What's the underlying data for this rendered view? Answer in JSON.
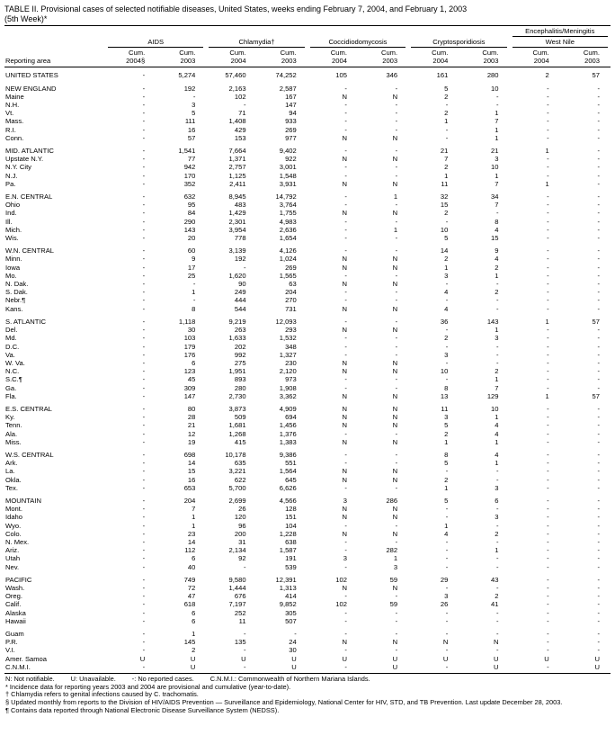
{
  "title": {
    "line1": "TABLE II. Provisional cases of selected notifiable diseases, United States, weeks ending February 7, 2004, and February 1, 2003",
    "line2": "(5th Week)*"
  },
  "header": {
    "reporting_area_label": "Reporting area",
    "super_group": "Encephalitis/Meningitis",
    "groups": [
      "AIDS",
      "Chlamydia†",
      "Coccidiodomycosis",
      "Cryptosporidiosis",
      "West Nile"
    ],
    "cum_label": "Cum.",
    "years": [
      "2004§",
      "2003",
      "2004",
      "2003",
      "2004",
      "2003",
      "2004",
      "2003",
      "2004",
      "2003"
    ]
  },
  "rows": [
    {
      "area": "UNITED STATES",
      "section": true,
      "gap": false,
      "values": [
        "-",
        "5,274",
        "57,460",
        "74,252",
        "105",
        "346",
        "161",
        "280",
        "2",
        "57"
      ]
    },
    {
      "area": "NEW ENGLAND",
      "section": true,
      "gap": true,
      "values": [
        "-",
        "192",
        "2,163",
        "2,587",
        "-",
        "-",
        "5",
        "10",
        "-",
        "-"
      ]
    },
    {
      "area": "Maine",
      "section": false,
      "gap": false,
      "values": [
        "-",
        "-",
        "102",
        "167",
        "N",
        "N",
        "2",
        "-",
        "-",
        "-"
      ]
    },
    {
      "area": "N.H.",
      "section": false,
      "gap": false,
      "values": [
        "-",
        "3",
        "-",
        "147",
        "-",
        "-",
        "-",
        "-",
        "-",
        "-"
      ]
    },
    {
      "area": "Vt.",
      "section": false,
      "gap": false,
      "values": [
        "-",
        "5",
        "71",
        "94",
        "-",
        "-",
        "2",
        "1",
        "-",
        "-"
      ]
    },
    {
      "area": "Mass.",
      "section": false,
      "gap": false,
      "values": [
        "-",
        "111",
        "1,408",
        "933",
        "-",
        "-",
        "1",
        "7",
        "-",
        "-"
      ]
    },
    {
      "area": "R.I.",
      "section": false,
      "gap": false,
      "values": [
        "-",
        "16",
        "429",
        "269",
        "-",
        "-",
        "-",
        "1",
        "-",
        "-"
      ]
    },
    {
      "area": "Conn.",
      "section": false,
      "gap": false,
      "values": [
        "-",
        "57",
        "153",
        "977",
        "N",
        "N",
        "-",
        "1",
        "-",
        "-"
      ]
    },
    {
      "area": "MID. ATLANTIC",
      "section": true,
      "gap": true,
      "values": [
        "-",
        "1,541",
        "7,664",
        "9,402",
        "-",
        "-",
        "21",
        "21",
        "1",
        "-"
      ]
    },
    {
      "area": "Upstate N.Y.",
      "section": false,
      "gap": false,
      "values": [
        "-",
        "77",
        "1,371",
        "922",
        "N",
        "N",
        "7",
        "3",
        "-",
        "-"
      ]
    },
    {
      "area": "N.Y. City",
      "section": false,
      "gap": false,
      "values": [
        "-",
        "942",
        "2,757",
        "3,001",
        "-",
        "-",
        "2",
        "10",
        "-",
        "-"
      ]
    },
    {
      "area": "N.J.",
      "section": false,
      "gap": false,
      "values": [
        "-",
        "170",
        "1,125",
        "1,548",
        "-",
        "-",
        "1",
        "1",
        "-",
        "-"
      ]
    },
    {
      "area": "Pa.",
      "section": false,
      "gap": false,
      "values": [
        "-",
        "352",
        "2,411",
        "3,931",
        "N",
        "N",
        "11",
        "7",
        "1",
        "-"
      ]
    },
    {
      "area": "E.N. CENTRAL",
      "section": true,
      "gap": true,
      "values": [
        "-",
        "632",
        "8,945",
        "14,792",
        "-",
        "1",
        "32",
        "34",
        "-",
        "-"
      ]
    },
    {
      "area": "Ohio",
      "section": false,
      "gap": false,
      "values": [
        "-",
        "95",
        "483",
        "3,764",
        "-",
        "-",
        "15",
        "7",
        "-",
        "-"
      ]
    },
    {
      "area": "Ind.",
      "section": false,
      "gap": false,
      "values": [
        "-",
        "84",
        "1,429",
        "1,755",
        "N",
        "N",
        "2",
        "-",
        "-",
        "-"
      ]
    },
    {
      "area": "Ill.",
      "section": false,
      "gap": false,
      "values": [
        "-",
        "290",
        "2,301",
        "4,983",
        "-",
        "-",
        "-",
        "8",
        "-",
        "-"
      ]
    },
    {
      "area": "Mich.",
      "section": false,
      "gap": false,
      "values": [
        "-",
        "143",
        "3,954",
        "2,636",
        "-",
        "1",
        "10",
        "4",
        "-",
        "-"
      ]
    },
    {
      "area": "Wis.",
      "section": false,
      "gap": false,
      "values": [
        "-",
        "20",
        "778",
        "1,654",
        "-",
        "-",
        "5",
        "15",
        "-",
        "-"
      ]
    },
    {
      "area": "W.N. CENTRAL",
      "section": true,
      "gap": true,
      "values": [
        "-",
        "60",
        "3,139",
        "4,126",
        "-",
        "-",
        "14",
        "9",
        "-",
        "-"
      ]
    },
    {
      "area": "Minn.",
      "section": false,
      "gap": false,
      "values": [
        "-",
        "9",
        "192",
        "1,024",
        "N",
        "N",
        "2",
        "4",
        "-",
        "-"
      ]
    },
    {
      "area": "Iowa",
      "section": false,
      "gap": false,
      "values": [
        "-",
        "17",
        "-",
        "269",
        "N",
        "N",
        "1",
        "2",
        "-",
        "-"
      ]
    },
    {
      "area": "Mo.",
      "section": false,
      "gap": false,
      "values": [
        "-",
        "25",
        "1,620",
        "1,565",
        "-",
        "-",
        "3",
        "1",
        "-",
        "-"
      ]
    },
    {
      "area": "N. Dak.",
      "section": false,
      "gap": false,
      "values": [
        "-",
        "-",
        "90",
        "63",
        "N",
        "N",
        "-",
        "-",
        "-",
        "-"
      ]
    },
    {
      "area": "S. Dak.",
      "section": false,
      "gap": false,
      "values": [
        "-",
        "1",
        "249",
        "204",
        "-",
        "-",
        "4",
        "2",
        "-",
        "-"
      ]
    },
    {
      "area": "Nebr.¶",
      "section": false,
      "gap": false,
      "values": [
        "-",
        "-",
        "444",
        "270",
        "-",
        "-",
        "-",
        "-",
        "-",
        "-"
      ]
    },
    {
      "area": "Kans.",
      "section": false,
      "gap": false,
      "values": [
        "-",
        "8",
        "544",
        "731",
        "N",
        "N",
        "4",
        "-",
        "-",
        "-"
      ]
    },
    {
      "area": "S. ATLANTIC",
      "section": true,
      "gap": true,
      "values": [
        "-",
        "1,118",
        "9,219",
        "12,093",
        "-",
        "-",
        "36",
        "143",
        "1",
        "57"
      ]
    },
    {
      "area": "Del.",
      "section": false,
      "gap": false,
      "values": [
        "-",
        "30",
        "263",
        "293",
        "N",
        "N",
        "-",
        "1",
        "-",
        "-"
      ]
    },
    {
      "area": "Md.",
      "section": false,
      "gap": false,
      "values": [
        "-",
        "103",
        "1,633",
        "1,532",
        "-",
        "-",
        "2",
        "3",
        "-",
        "-"
      ]
    },
    {
      "area": "D.C.",
      "section": false,
      "gap": false,
      "values": [
        "-",
        "179",
        "202",
        "348",
        "-",
        "-",
        "-",
        "-",
        "-",
        "-"
      ]
    },
    {
      "area": "Va.",
      "section": false,
      "gap": false,
      "values": [
        "-",
        "176",
        "992",
        "1,327",
        "-",
        "-",
        "3",
        "-",
        "-",
        "-"
      ]
    },
    {
      "area": "W. Va.",
      "section": false,
      "gap": false,
      "values": [
        "-",
        "6",
        "275",
        "230",
        "N",
        "N",
        "-",
        "-",
        "-",
        "-"
      ]
    },
    {
      "area": "N.C.",
      "section": false,
      "gap": false,
      "values": [
        "-",
        "123",
        "1,951",
        "2,120",
        "N",
        "N",
        "10",
        "2",
        "-",
        "-"
      ]
    },
    {
      "area": "S.C.¶",
      "section": false,
      "gap": false,
      "values": [
        "-",
        "45",
        "893",
        "973",
        "-",
        "-",
        "-",
        "1",
        "-",
        "-"
      ]
    },
    {
      "area": "Ga.",
      "section": false,
      "gap": false,
      "values": [
        "-",
        "309",
        "280",
        "1,908",
        "-",
        "-",
        "8",
        "7",
        "-",
        "-"
      ]
    },
    {
      "area": "Fla.",
      "section": false,
      "gap": false,
      "values": [
        "-",
        "147",
        "2,730",
        "3,362",
        "N",
        "N",
        "13",
        "129",
        "1",
        "57"
      ]
    },
    {
      "area": "E.S. CENTRAL",
      "section": true,
      "gap": true,
      "values": [
        "-",
        "80",
        "3,873",
        "4,909",
        "N",
        "N",
        "11",
        "10",
        "-",
        "-"
      ]
    },
    {
      "area": "Ky.",
      "section": false,
      "gap": false,
      "values": [
        "-",
        "28",
        "509",
        "694",
        "N",
        "N",
        "3",
        "1",
        "-",
        "-"
      ]
    },
    {
      "area": "Tenn.",
      "section": false,
      "gap": false,
      "values": [
        "-",
        "21",
        "1,681",
        "1,456",
        "N",
        "N",
        "5",
        "4",
        "-",
        "-"
      ]
    },
    {
      "area": "Ala.",
      "section": false,
      "gap": false,
      "values": [
        "-",
        "12",
        "1,268",
        "1,376",
        "-",
        "-",
        "2",
        "4",
        "-",
        "-"
      ]
    },
    {
      "area": "Miss.",
      "section": false,
      "gap": false,
      "values": [
        "-",
        "19",
        "415",
        "1,383",
        "N",
        "N",
        "1",
        "1",
        "-",
        "-"
      ]
    },
    {
      "area": "W.S. CENTRAL",
      "section": true,
      "gap": true,
      "values": [
        "-",
        "698",
        "10,178",
        "9,386",
        "-",
        "-",
        "8",
        "4",
        "-",
        "-"
      ]
    },
    {
      "area": "Ark.",
      "section": false,
      "gap": false,
      "values": [
        "-",
        "14",
        "635",
        "551",
        "-",
        "-",
        "5",
        "1",
        "-",
        "-"
      ]
    },
    {
      "area": "La.",
      "section": false,
      "gap": false,
      "values": [
        "-",
        "15",
        "3,221",
        "1,564",
        "N",
        "N",
        "-",
        "-",
        "-",
        "-"
      ]
    },
    {
      "area": "Okla.",
      "section": false,
      "gap": false,
      "values": [
        "-",
        "16",
        "622",
        "645",
        "N",
        "N",
        "2",
        "-",
        "-",
        "-"
      ]
    },
    {
      "area": "Tex.",
      "section": false,
      "gap": false,
      "values": [
        "-",
        "653",
        "5,700",
        "6,626",
        "-",
        "-",
        "1",
        "3",
        "-",
        "-"
      ]
    },
    {
      "area": "MOUNTAIN",
      "section": true,
      "gap": true,
      "values": [
        "-",
        "204",
        "2,699",
        "4,566",
        "3",
        "286",
        "5",
        "6",
        "-",
        "-"
      ]
    },
    {
      "area": "Mont.",
      "section": false,
      "gap": false,
      "values": [
        "-",
        "7",
        "26",
        "128",
        "N",
        "N",
        "-",
        "-",
        "-",
        "-"
      ]
    },
    {
      "area": "Idaho",
      "section": false,
      "gap": false,
      "values": [
        "-",
        "1",
        "120",
        "151",
        "N",
        "N",
        "-",
        "3",
        "-",
        "-"
      ]
    },
    {
      "area": "Wyo.",
      "section": false,
      "gap": false,
      "values": [
        "-",
        "1",
        "96",
        "104",
        "-",
        "-",
        "1",
        "-",
        "-",
        "-"
      ]
    },
    {
      "area": "Colo.",
      "section": false,
      "gap": false,
      "values": [
        "-",
        "23",
        "200",
        "1,228",
        "N",
        "N",
        "4",
        "2",
        "-",
        "-"
      ]
    },
    {
      "area": "N. Mex.",
      "section": false,
      "gap": false,
      "values": [
        "-",
        "14",
        "31",
        "638",
        "-",
        "-",
        "-",
        "-",
        "-",
        "-"
      ]
    },
    {
      "area": "Ariz.",
      "section": false,
      "gap": false,
      "values": [
        "-",
        "112",
        "2,134",
        "1,587",
        "-",
        "282",
        "-",
        "1",
        "-",
        "-"
      ]
    },
    {
      "area": "Utah",
      "section": false,
      "gap": false,
      "values": [
        "-",
        "6",
        "92",
        "191",
        "3",
        "1",
        "-",
        "-",
        "-",
        "-"
      ]
    },
    {
      "area": "Nev.",
      "section": false,
      "gap": false,
      "values": [
        "-",
        "40",
        "-",
        "539",
        "-",
        "3",
        "-",
        "-",
        "-",
        "-"
      ]
    },
    {
      "area": "PACIFIC",
      "section": true,
      "gap": true,
      "values": [
        "-",
        "749",
        "9,580",
        "12,391",
        "102",
        "59",
        "29",
        "43",
        "-",
        "-"
      ]
    },
    {
      "area": "Wash.",
      "section": false,
      "gap": false,
      "values": [
        "-",
        "72",
        "1,444",
        "1,313",
        "N",
        "N",
        "-",
        "-",
        "-",
        "-"
      ]
    },
    {
      "area": "Oreg.",
      "section": false,
      "gap": false,
      "values": [
        "-",
        "47",
        "676",
        "414",
        "-",
        "-",
        "3",
        "2",
        "-",
        "-"
      ]
    },
    {
      "area": "Calif.",
      "section": false,
      "gap": false,
      "values": [
        "-",
        "618",
        "7,197",
        "9,852",
        "102",
        "59",
        "26",
        "41",
        "-",
        "-"
      ]
    },
    {
      "area": "Alaska",
      "section": false,
      "gap": false,
      "values": [
        "-",
        "6",
        "252",
        "305",
        "-",
        "-",
        "-",
        "-",
        "-",
        "-"
      ]
    },
    {
      "area": "Hawaii",
      "section": false,
      "gap": false,
      "values": [
        "-",
        "6",
        "11",
        "507",
        "-",
        "-",
        "-",
        "-",
        "-",
        "-"
      ]
    },
    {
      "area": "Guam",
      "section": false,
      "gap": true,
      "values": [
        "-",
        "1",
        "-",
        "-",
        "-",
        "-",
        "-",
        "-",
        "-",
        "-"
      ]
    },
    {
      "area": "P.R.",
      "section": false,
      "gap": false,
      "values": [
        "-",
        "145",
        "135",
        "24",
        "N",
        "N",
        "N",
        "N",
        "-",
        "-"
      ]
    },
    {
      "area": "V.I.",
      "section": false,
      "gap": false,
      "values": [
        "-",
        "2",
        "-",
        "30",
        "-",
        "-",
        "-",
        "-",
        "-",
        "-"
      ]
    },
    {
      "area": "Amer. Samoa",
      "section": false,
      "gap": false,
      "values": [
        "U",
        "U",
        "U",
        "U",
        "U",
        "U",
        "U",
        "U",
        "U",
        "U"
      ]
    },
    {
      "area": "C.N.M.I.",
      "section": false,
      "gap": false,
      "values": [
        "-",
        "U",
        "-",
        "U",
        "-",
        "U",
        "-",
        "U",
        "-",
        "U"
      ]
    }
  ],
  "footnotes": {
    "legend": [
      "N: Not notifiable.",
      "U: Unavailable.",
      "-: No reported cases.",
      "C.N.M.I.: Commonwealth of Northern Mariana Islands."
    ],
    "notes": [
      "* Incidence data for reporting years 2003 and 2004 are provisional and cumulative (year-to-date).",
      "† Chlamydia refers to genital infections caused by C. trachomatis.",
      "§ Updated monthly from reports to the Division of HIV/AIDS Prevention — Surveillance and Epidemiology, National Center for HIV, STD, and TB Prevention. Last update December 28, 2003.",
      "¶ Contains data reported through National Electronic Disease Surveillance System (NEDSS)."
    ]
  }
}
